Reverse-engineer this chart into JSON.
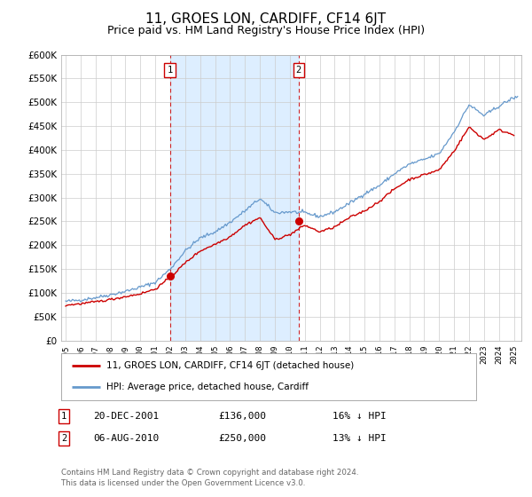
{
  "title": "11, GROES LON, CARDIFF, CF14 6JT",
  "subtitle": "Price paid vs. HM Land Registry's House Price Index (HPI)",
  "title_fontsize": 11,
  "subtitle_fontsize": 9,
  "ylim": [
    0,
    600000
  ],
  "yticks": [
    0,
    50000,
    100000,
    150000,
    200000,
    250000,
    300000,
    350000,
    400000,
    450000,
    500000,
    550000,
    600000
  ],
  "ytick_labels": [
    "£0",
    "£50K",
    "£100K",
    "£150K",
    "£200K",
    "£250K",
    "£300K",
    "£350K",
    "£400K",
    "£450K",
    "£500K",
    "£550K",
    "£600K"
  ],
  "xlim_start": 1994.7,
  "xlim_end": 2025.5,
  "xtick_years": [
    1995,
    1996,
    1997,
    1998,
    1999,
    2000,
    2001,
    2002,
    2003,
    2004,
    2005,
    2006,
    2007,
    2008,
    2009,
    2010,
    2011,
    2012,
    2013,
    2014,
    2015,
    2016,
    2017,
    2018,
    2019,
    2020,
    2021,
    2022,
    2023,
    2024,
    2025
  ],
  "sale1_x": 2001.97,
  "sale1_y": 136000,
  "sale2_x": 2010.59,
  "sale2_y": 250000,
  "sale1_date": "20-DEC-2001",
  "sale1_price": "£136,000",
  "sale1_hpi": "16% ↓ HPI",
  "sale2_date": "06-AUG-2010",
  "sale2_price": "£250,000",
  "sale2_hpi": "13% ↓ HPI",
  "hpi_color": "#6699cc",
  "price_color": "#cc0000",
  "shade_color": "#ddeeff",
  "grid_color": "#cccccc",
  "bg_color": "#ffffff",
  "legend_label1": "11, GROES LON, CARDIFF, CF14 6JT (detached house)",
  "legend_label2": "HPI: Average price, detached house, Cardiff",
  "footer1": "Contains HM Land Registry data © Crown copyright and database right 2024.",
  "footer2": "This data is licensed under the Open Government Licence v3.0.",
  "hpi_anchors_x": [
    1995,
    1996,
    1997,
    1998,
    1999,
    2000,
    2001,
    2002,
    2003,
    2004,
    2005,
    2006,
    2007,
    2008,
    2009,
    2010,
    2011,
    2012,
    2013,
    2014,
    2015,
    2016,
    2017,
    2018,
    2019,
    2020,
    2021,
    2022,
    2023,
    2024,
    2025
  ],
  "hpi_anchors_y": [
    82000,
    85000,
    90000,
    96000,
    103000,
    112000,
    122000,
    150000,
    188000,
    215000,
    228000,
    248000,
    272000,
    298000,
    268000,
    270000,
    268000,
    260000,
    270000,
    288000,
    308000,
    325000,
    350000,
    370000,
    380000,
    392000,
    438000,
    495000,
    472000,
    492000,
    510000
  ],
  "price_anchors_x": [
    1995,
    1996,
    1997,
    1998,
    1999,
    2000,
    2001,
    2002,
    2003,
    2004,
    2005,
    2006,
    2007,
    2008,
    2009,
    2010,
    2011,
    2012,
    2013,
    2014,
    2015,
    2016,
    2017,
    2018,
    2019,
    2020,
    2021,
    2022,
    2023,
    2024,
    2025
  ],
  "price_anchors_y": [
    74000,
    77000,
    81000,
    86000,
    92000,
    98000,
    108000,
    132000,
    163000,
    188000,
    202000,
    218000,
    242000,
    258000,
    212000,
    222000,
    242000,
    228000,
    238000,
    258000,
    272000,
    292000,
    318000,
    338000,
    348000,
    358000,
    398000,
    448000,
    422000,
    442000,
    432000
  ]
}
